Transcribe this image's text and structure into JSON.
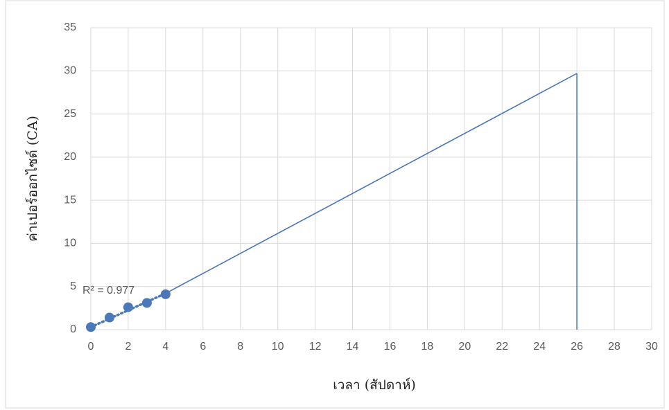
{
  "chart_data": {
    "type": "scatter",
    "y_label": "ค่าเปอร์ออกไซด์ (CA)",
    "x_label": "เวลา (สัปดาห์)",
    "annotation": "R² = 0.977",
    "xlim": [
      0,
      30
    ],
    "xticks": [
      0,
      2,
      4,
      6,
      8,
      10,
      12,
      14,
      16,
      18,
      20,
      22,
      24,
      26,
      28,
      30
    ],
    "ylim": [
      0,
      35
    ],
    "yticks": [
      0,
      5,
      10,
      15,
      20,
      25,
      30,
      35
    ],
    "grid": true,
    "series": [
      {
        "type": "scatter",
        "color": "#4a78b8",
        "x": [
          0,
          1,
          2,
          3,
          4
        ],
        "values": [
          0.3,
          1.4,
          2.6,
          3.1,
          4.1
        ]
      },
      {
        "type": "line",
        "style": "dotted",
        "color": "#4a78b8",
        "x": [
          0,
          4
        ],
        "values": [
          0.3,
          4.2
        ]
      },
      {
        "type": "line",
        "style": "solid",
        "color": "#4a78b8",
        "x": [
          4,
          26
        ],
        "values": [
          4.2,
          29.7
        ]
      },
      {
        "type": "line",
        "style": "solid",
        "color": "#4a78b8",
        "x": [
          26,
          26
        ],
        "values": [
          29.7,
          0
        ]
      }
    ]
  }
}
